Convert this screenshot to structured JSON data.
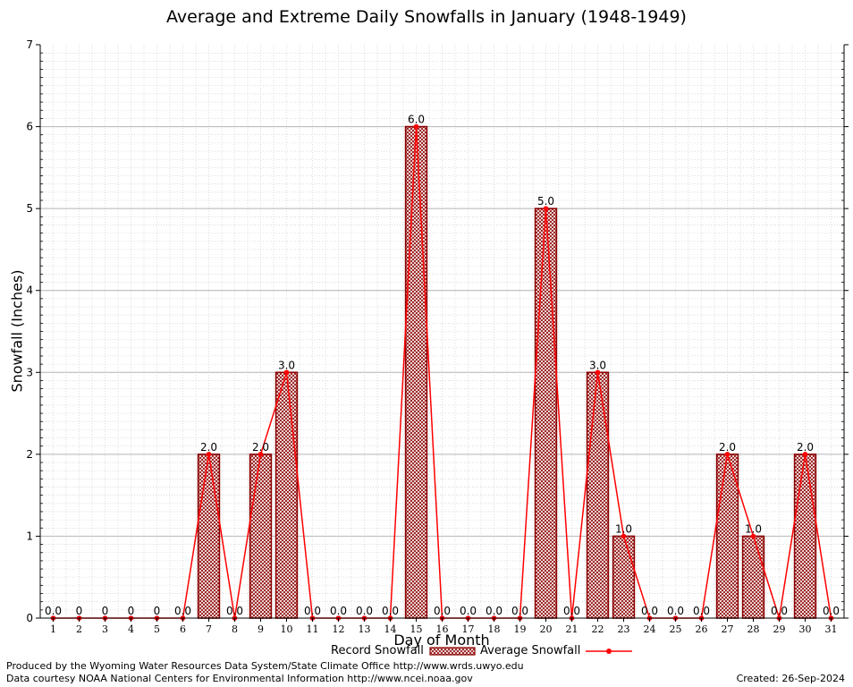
{
  "chart_data": {
    "type": "bar",
    "title": "Average and Extreme Daily Snowfalls in January (1948-1949)",
    "xlabel": "Day of Month",
    "ylabel": "Snowfall (Inches)",
    "ylim": [
      0,
      7
    ],
    "yticks": [
      "0",
      "1",
      "2",
      "3",
      "4",
      "5",
      "6",
      "7"
    ],
    "categories": [
      "1",
      "2",
      "3",
      "4",
      "5",
      "6",
      "7",
      "8",
      "9",
      "10",
      "11",
      "12",
      "13",
      "14",
      "15",
      "16",
      "17",
      "18",
      "19",
      "20",
      "21",
      "22",
      "23",
      "24",
      "25",
      "26",
      "27",
      "28",
      "29",
      "30",
      "31"
    ],
    "series": [
      {
        "name": "Record Snowfall",
        "values": [
          0,
          0,
          0,
          0,
          0,
          0,
          2,
          0,
          2,
          3,
          0,
          0,
          0,
          0,
          6,
          0,
          0,
          0,
          0,
          5,
          0,
          3,
          1,
          0,
          0,
          0,
          2,
          1,
          0,
          2,
          0
        ]
      },
      {
        "name": "Average Snowfall",
        "values": [
          0,
          0,
          0,
          0,
          0,
          0,
          2,
          0,
          2,
          3,
          0,
          0,
          0,
          0,
          6,
          0,
          0,
          0,
          0,
          5,
          0,
          3,
          1,
          0,
          0,
          0,
          2,
          1,
          0,
          2,
          0
        ]
      }
    ],
    "data_labels": [
      "0.0",
      "0",
      "0",
      "0",
      "0",
      "0.0",
      "2.0",
      "0.0",
      "2.0",
      "3.0",
      "0.0",
      "0.0",
      "0.0",
      "0.0",
      "6.0",
      "0.0",
      "0.0",
      "0.0",
      "0.0",
      "5.0",
      "0.0",
      "3.0",
      "1.0",
      "0.0",
      "0.0",
      "0.0",
      "2.0",
      "1.0",
      "0.0",
      "2.0",
      "0.0"
    ],
    "grid": true,
    "legend_position": "bottom"
  },
  "colors": {
    "bar_fill": "#e6bdbd",
    "bar_border": "#8b0000",
    "line": "#ff0000",
    "grid": "#b4b4b4"
  },
  "footer": {
    "produced_by": "Produced by the Wyoming Water Resources Data System/State Climate Office http://www.wrds.uwyo.edu",
    "courtesy": "Data courtesy NOAA National Centers for Environmental Information http://www.ncei.noaa.gov",
    "created": "Created:  26-Sep-2024"
  }
}
